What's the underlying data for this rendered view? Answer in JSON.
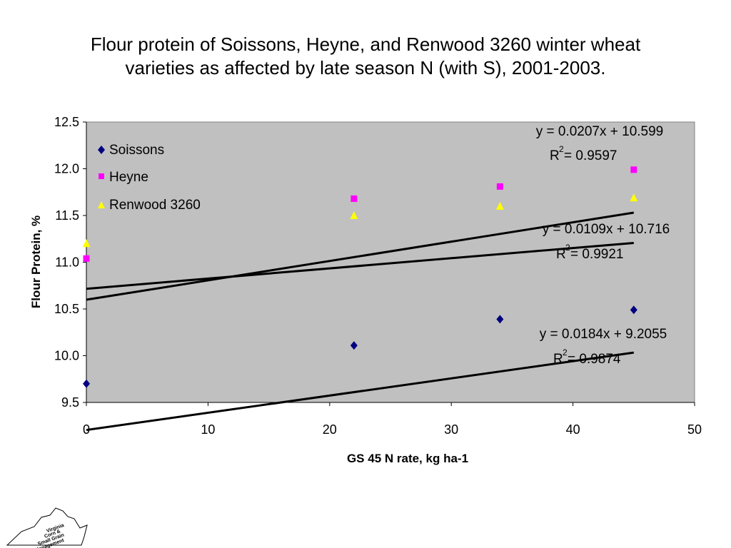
{
  "chart_data": {
    "type": "scatter",
    "title_lines": [
      "Flour protein of Soissons, Heyne, and Renwood 3260 winter wheat",
      "varieties as affected by late season N (with S), 2001-2003."
    ],
    "xlabel": "GS 45 N rate, kg  ha-1",
    "ylabel": "Flour Protein, %",
    "xlim": [
      0,
      50
    ],
    "ylim": [
      9.5,
      12.5
    ],
    "x_ticks": [
      "0",
      "10",
      "20",
      "30",
      "40",
      "50"
    ],
    "y_ticks": [
      "9.5",
      "10.0",
      "10.5",
      "11.0",
      "11.5",
      "12.0",
      "12.5"
    ],
    "grid": false,
    "plot_background": "#c0c0c0",
    "legend_position": "top-left",
    "series": [
      {
        "name": "Soissons",
        "marker": "diamond",
        "color": "#000080",
        "x": [
          0,
          22,
          34,
          45
        ],
        "y": [
          9.7,
          10.11,
          10.39,
          10.49
        ],
        "trendline": {
          "slope": 0.0184,
          "intercept": 9.2055,
          "equation": "y = 0.0184x + 9.2055",
          "r2_label": "R",
          "r2_exp": "2",
          "r2_value": "= 0.9874"
        }
      },
      {
        "name": "Heyne",
        "marker": "square",
        "color": "#ff00ff",
        "x": [
          0,
          22,
          34,
          45
        ],
        "y": [
          11.04,
          11.68,
          11.81,
          11.99
        ],
        "trendline": {
          "slope": 0.0207,
          "intercept": 10.599,
          "equation": "y = 0.0207x + 10.599",
          "r2_label": "R",
          "r2_exp": "2",
          "r2_value": "= 0.9597"
        }
      },
      {
        "name": "Renwood 3260",
        "marker": "triangle",
        "color": "#ffff00",
        "x": [
          0,
          22,
          34,
          45
        ],
        "y": [
          11.2,
          11.5,
          11.6,
          11.69
        ],
        "trendline": {
          "slope": 0.0109,
          "intercept": 10.716,
          "equation": "y = 0.0109x + 10.716",
          "r2_label": "R",
          "r2_exp": "2",
          "r2_value": "= 0.9921"
        }
      }
    ]
  },
  "logo": {
    "lines": [
      "Virginia",
      "Corn &",
      "Small Grain",
      "Management"
    ]
  }
}
